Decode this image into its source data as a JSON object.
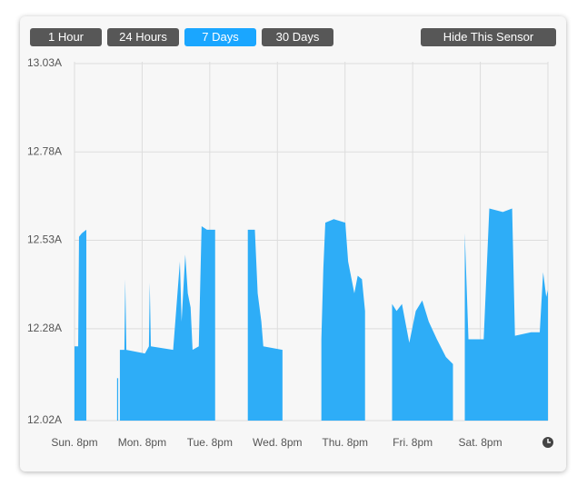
{
  "buttons": [
    "1 Hour",
    "24 Hours",
    "7 Days",
    "30 Days"
  ],
  "selected_button": 2,
  "hide_button": "Hide This Sensor",
  "chart_data": {
    "type": "area",
    "color": "#2eadf7",
    "grid": true,
    "x": [
      0,
      1.3,
      1.6,
      2.6,
      4.2,
      10,
      15.1,
      15.5,
      15.8,
      16.1,
      17.7,
      18.0,
      18.4,
      25,
      26.4,
      26.7,
      27.1,
      35,
      37.4,
      38.0,
      39.3,
      40.2,
      41.2,
      41.9,
      44.1,
      45.1,
      47,
      49.9,
      52,
      61.5,
      64,
      65,
      66.3,
      67,
      73.8,
      80,
      87.6,
      88.3,
      89,
      92,
      96.1,
      97.1,
      99.3,
      100.5,
      102,
      103.1,
      106,
      112.7,
      114.3,
      116.2,
      118.8,
      121.1,
      123.4,
      125.7,
      128.6,
      131.8,
      134.3,
      137,
      138.5,
      139.8,
      145.2,
      147.2,
      152,
      155.3,
      156.3,
      162,
      165.1,
      166.3,
      167.4,
      168
    ],
    "values": [
      12.23,
      12.23,
      12.54,
      12.55,
      12.56,
      null,
      12.14,
      12.14,
      null,
      12.22,
      12.22,
      12.42,
      12.22,
      12.21,
      12.23,
      12.41,
      12.23,
      12.22,
      12.47,
      12.3,
      12.49,
      12.38,
      12.34,
      12.22,
      12.23,
      12.57,
      12.56,
      12.56,
      null,
      12.56,
      12.56,
      12.38,
      12.3,
      12.23,
      12.22,
      null,
      12.25,
      12.45,
      12.58,
      12.59,
      12.58,
      12.47,
      12.38,
      12.43,
      12.42,
      12.33,
      null,
      12.35,
      12.33,
      12.35,
      12.24,
      12.33,
      12.36,
      12.3,
      12.25,
      12.2,
      12.18,
      null,
      12.55,
      12.25,
      12.25,
      12.62,
      12.61,
      12.62,
      12.26,
      12.27,
      12.27,
      12.44,
      12.37,
      12.39
    ],
    "xlim": [
      0,
      168
    ],
    "xticks": [
      {
        "value": 0,
        "label": "Sun. 8pm"
      },
      {
        "value": 24,
        "label": "Mon. 8pm"
      },
      {
        "value": 48,
        "label": "Tue. 8pm"
      },
      {
        "value": 72,
        "label": "Wed. 8pm"
      },
      {
        "value": 96,
        "label": "Thu. 8pm"
      },
      {
        "value": 120,
        "label": "Fri. 8pm"
      },
      {
        "value": 144,
        "label": "Sat. 8pm"
      }
    ],
    "ylim": [
      12.02,
      13.03
    ],
    "yticks": [
      {
        "value": 12.02,
        "label": "12.02A"
      },
      {
        "value": 12.28,
        "label": "12.28A"
      },
      {
        "value": 12.53,
        "label": "12.53A"
      },
      {
        "value": 12.78,
        "label": "12.78A"
      },
      {
        "value": 13.03,
        "label": "13.03A"
      }
    ]
  }
}
